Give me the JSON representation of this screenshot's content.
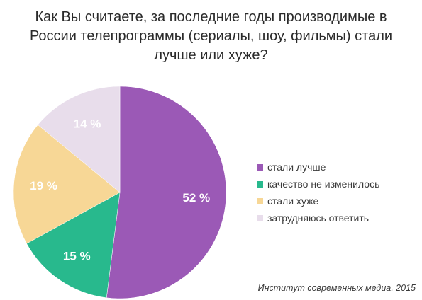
{
  "title_lines": [
    "Как Вы считаете, за последние годы производимые в",
    "России телепрограммы (сериалы, шоу, фильмы) стали",
    "лучше или хуже?"
  ],
  "source": "Институт современных медиа, 2015",
  "chart_data": {
    "type": "pie",
    "title": "Как Вы считаете, за последние годы производимые в России телепрограммы (сериалы, шоу, фильмы) стали лучше или хуже?",
    "start_angle": "12 o'clock",
    "direction": "clockwise",
    "legend_position": "right",
    "slices": [
      {
        "label": "стали лучше",
        "value": 52,
        "value_label": "52 %",
        "color": "#9B59B6"
      },
      {
        "label": "качество не изменилось",
        "value": 15,
        "value_label": "15 %",
        "color": "#28B98D"
      },
      {
        "label": "стали хуже",
        "value": 19,
        "value_label": "19 %",
        "color": "#F7D796"
      },
      {
        "label": "затрудняюсь ответить",
        "value": 14,
        "value_label": "14 %",
        "color": "#E8DDEB"
      }
    ]
  }
}
